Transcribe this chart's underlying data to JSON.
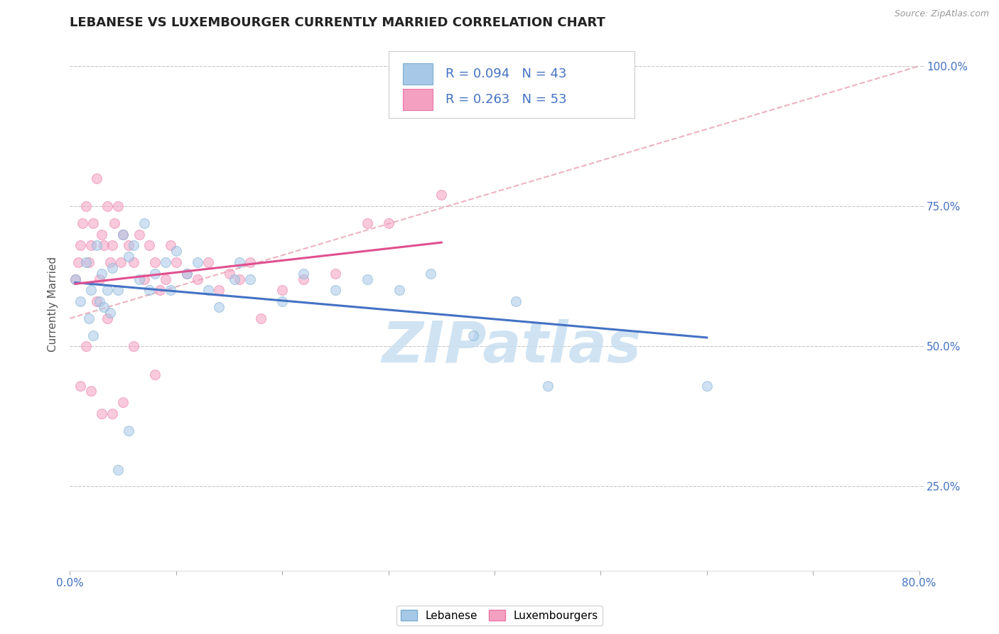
{
  "title": "LEBANESE VS LUXEMBOURGER CURRENTLY MARRIED CORRELATION CHART",
  "source_text": "Source: ZipAtlas.com",
  "ylabel": "Currently Married",
  "xlim": [
    0.0,
    0.8
  ],
  "ylim": [
    0.1,
    1.05
  ],
  "yticks": [
    0.25,
    0.5,
    0.75,
    1.0
  ],
  "ytick_labels": [
    "25.0%",
    "50.0%",
    "75.0%",
    "100.0%"
  ],
  "xticks": [
    0.0,
    0.1,
    0.2,
    0.3,
    0.4,
    0.5,
    0.6,
    0.7,
    0.8
  ],
  "xtick_labels_show": [
    "0.0%",
    "",
    "",
    "",
    "",
    "",
    "",
    "",
    "80.0%"
  ],
  "blue_color": "#a8c8e8",
  "pink_color": "#f4a0c0",
  "blue_edge": "#7aaed0",
  "pink_edge": "#e878a8",
  "trend_blue": "#4472c4",
  "trend_pink": "#e05090",
  "ref_line_color": "#e8a0b0",
  "grid_color": "#c8c8c8",
  "background_color": "#ffffff",
  "blue_points_x": [
    0.005,
    0.01,
    0.015,
    0.018,
    0.02,
    0.022,
    0.025,
    0.028,
    0.03,
    0.032,
    0.035,
    0.038,
    0.04,
    0.045,
    0.05,
    0.055,
    0.06,
    0.065,
    0.07,
    0.075,
    0.08,
    0.09,
    0.095,
    0.1,
    0.11,
    0.12,
    0.13,
    0.14,
    0.155,
    0.16,
    0.17,
    0.2,
    0.22,
    0.25,
    0.28,
    0.31,
    0.34,
    0.38,
    0.42,
    0.45,
    0.6,
    0.055,
    0.045
  ],
  "blue_points_y": [
    0.62,
    0.58,
    0.65,
    0.55,
    0.6,
    0.52,
    0.68,
    0.58,
    0.63,
    0.57,
    0.6,
    0.56,
    0.64,
    0.6,
    0.7,
    0.66,
    0.68,
    0.62,
    0.72,
    0.6,
    0.63,
    0.65,
    0.6,
    0.67,
    0.63,
    0.65,
    0.6,
    0.57,
    0.62,
    0.65,
    0.62,
    0.58,
    0.63,
    0.6,
    0.62,
    0.6,
    0.63,
    0.52,
    0.58,
    0.43,
    0.43,
    0.35,
    0.28
  ],
  "pink_points_x": [
    0.005,
    0.008,
    0.01,
    0.012,
    0.015,
    0.018,
    0.02,
    0.022,
    0.025,
    0.028,
    0.03,
    0.032,
    0.035,
    0.038,
    0.04,
    0.042,
    0.045,
    0.048,
    0.05,
    0.055,
    0.06,
    0.065,
    0.07,
    0.075,
    0.08,
    0.085,
    0.09,
    0.095,
    0.1,
    0.11,
    0.12,
    0.13,
    0.14,
    0.15,
    0.16,
    0.17,
    0.18,
    0.2,
    0.22,
    0.25,
    0.28,
    0.3,
    0.35,
    0.025,
    0.035,
    0.015,
    0.01,
    0.04,
    0.06,
    0.08,
    0.02,
    0.03,
    0.05
  ],
  "pink_points_y": [
    0.62,
    0.65,
    0.68,
    0.72,
    0.75,
    0.65,
    0.68,
    0.72,
    0.8,
    0.62,
    0.7,
    0.68,
    0.75,
    0.65,
    0.68,
    0.72,
    0.75,
    0.65,
    0.7,
    0.68,
    0.65,
    0.7,
    0.62,
    0.68,
    0.65,
    0.6,
    0.62,
    0.68,
    0.65,
    0.63,
    0.62,
    0.65,
    0.6,
    0.63,
    0.62,
    0.65,
    0.55,
    0.6,
    0.62,
    0.63,
    0.72,
    0.72,
    0.77,
    0.58,
    0.55,
    0.5,
    0.43,
    0.38,
    0.5,
    0.45,
    0.42,
    0.38,
    0.4
  ],
  "figsize": [
    14.06,
    8.92
  ],
  "dpi": 100,
  "title_fontsize": 13,
  "tick_fontsize": 11,
  "legend_fontsize": 13,
  "marker_size": 100,
  "marker_alpha": 0.55,
  "watermark_text": "ZIPatlas",
  "watermark_color": "#c8dff0",
  "watermark_fontsize": 58
}
